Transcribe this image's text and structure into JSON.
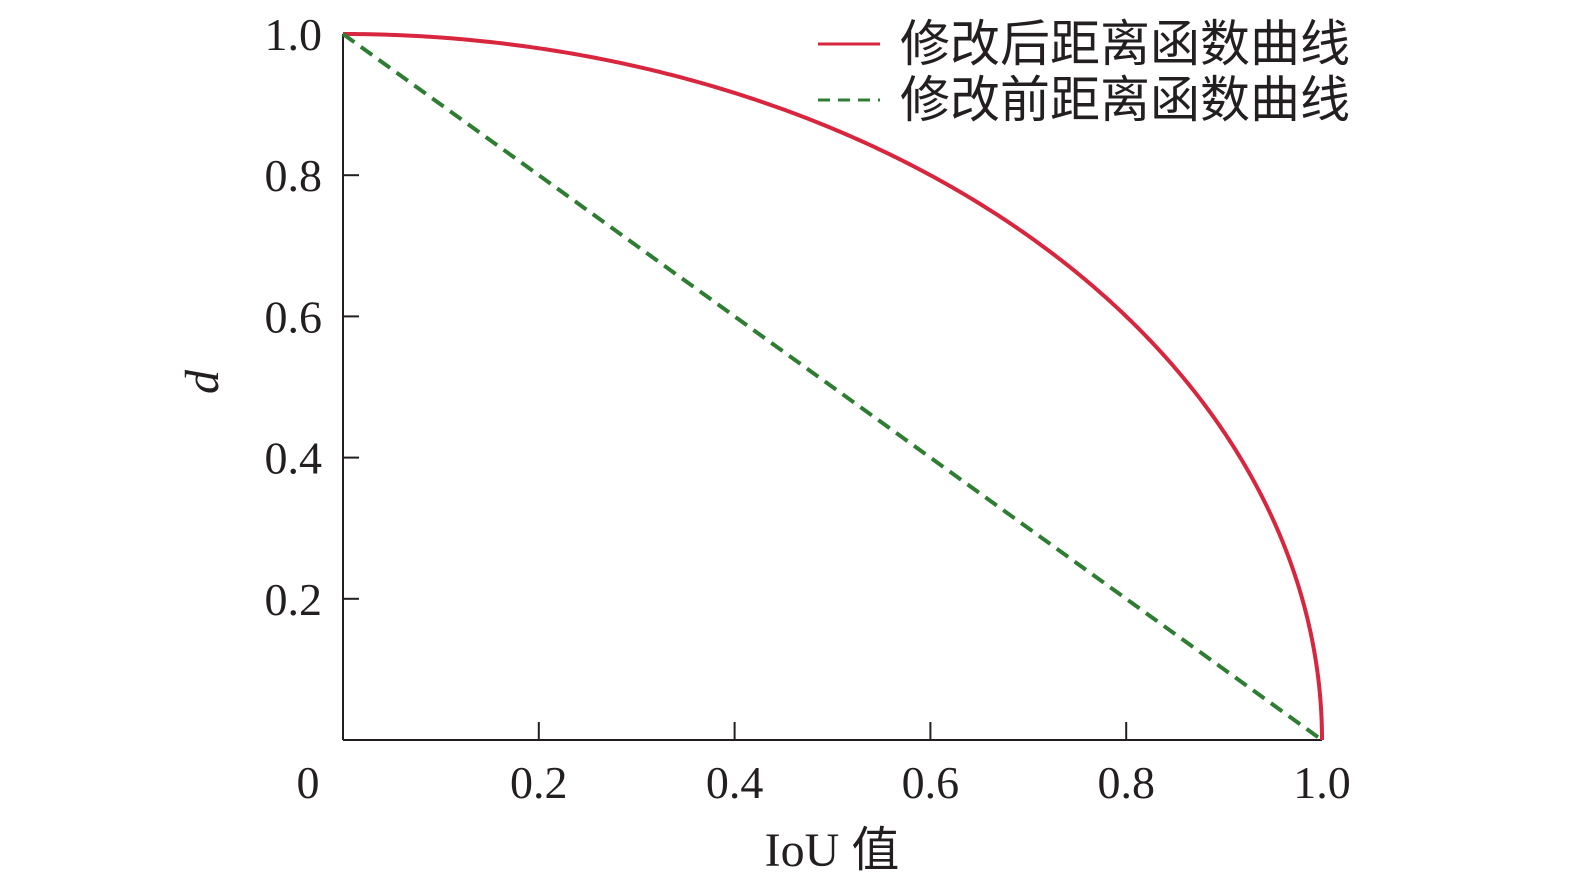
{
  "chart_data": {
    "type": "line",
    "title": "",
    "xlabel": "IoU 值",
    "ylabel": "d",
    "xlim": [
      0,
      1.0
    ],
    "ylim": [
      0,
      1.0
    ],
    "x_ticks": [
      {
        "value": 0,
        "label": "0"
      },
      {
        "value": 0.2,
        "label": "0.2"
      },
      {
        "value": 0.4,
        "label": "0.4"
      },
      {
        "value": 0.6,
        "label": "0.6"
      },
      {
        "value": 0.8,
        "label": "0.8"
      },
      {
        "value": 1.0,
        "label": "1.0"
      }
    ],
    "y_ticks": [
      {
        "value": 0.2,
        "label": "0.2"
      },
      {
        "value": 0.4,
        "label": "0.4"
      },
      {
        "value": 0.6,
        "label": "0.6"
      },
      {
        "value": 0.8,
        "label": "0.8"
      },
      {
        "value": 1.0,
        "label": "1.0"
      }
    ],
    "grid": false,
    "legend_position": "top-right",
    "series": [
      {
        "name": "修改后距离函数曲线",
        "color": "#d7263d",
        "style": "solid",
        "x": [
          0,
          0.1,
          0.2,
          0.3,
          0.4,
          0.5,
          0.6,
          0.7,
          0.8,
          0.9,
          0.95,
          0.99,
          1.0
        ],
        "y": [
          1.0,
          0.995,
          0.98,
          0.954,
          0.917,
          0.866,
          0.8,
          0.714,
          0.6,
          0.436,
          0.312,
          0.141,
          0.0
        ]
      },
      {
        "name": "修改前距离函数曲线",
        "color": "#2e7d32",
        "style": "dashed",
        "x": [
          0,
          0.2,
          0.4,
          0.6,
          0.8,
          1.0
        ],
        "y": [
          1.0,
          0.8,
          0.6,
          0.4,
          0.2,
          0.0
        ]
      }
    ]
  }
}
